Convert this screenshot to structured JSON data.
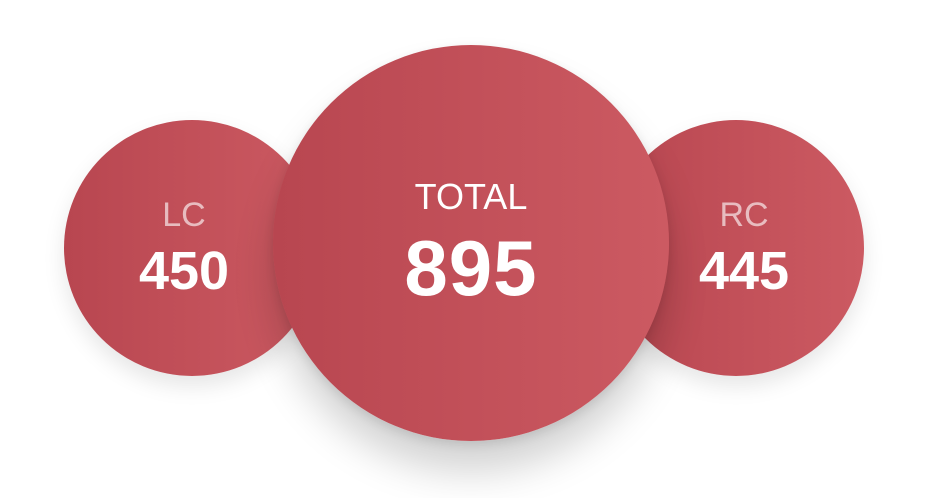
{
  "stats": {
    "left": {
      "label": "LC",
      "value": "450"
    },
    "total": {
      "label": "TOTAL",
      "value": "895"
    },
    "right": {
      "label": "RC",
      "value": "445"
    }
  },
  "colors": {
    "circle_start": "#b84650",
    "circle_end": "#cc5a62",
    "text": "#ffffff"
  }
}
